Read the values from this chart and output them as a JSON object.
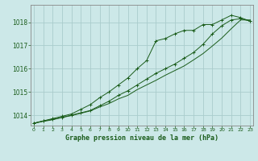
{
  "xlabel": "Graphe pression niveau de la mer (hPa)",
  "background_color": "#cce8e8",
  "grid_color": "#aacccc",
  "line_color": "#1a5c1a",
  "x_ticks": [
    0,
    1,
    2,
    3,
    4,
    5,
    6,
    7,
    8,
    9,
    10,
    11,
    12,
    13,
    14,
    15,
    16,
    17,
    18,
    19,
    20,
    21,
    22,
    23
  ],
  "y_ticks": [
    1014,
    1015,
    1016,
    1017,
    1018
  ],
  "ylim": [
    1013.55,
    1018.75
  ],
  "xlim": [
    -0.3,
    23.3
  ],
  "s1": [
    1013.65,
    1013.75,
    1013.85,
    1013.95,
    1014.05,
    1014.25,
    1014.45,
    1014.75,
    1015.0,
    1015.3,
    1015.6,
    1016.0,
    1016.35,
    1017.2,
    1017.3,
    1017.5,
    1017.65,
    1017.65,
    1017.9,
    1017.9,
    1018.1,
    1018.3,
    1018.2,
    1018.05
  ],
  "s2": [
    1013.65,
    1013.75,
    1013.82,
    1013.9,
    1014.0,
    1014.1,
    1014.2,
    1014.4,
    1014.6,
    1014.85,
    1015.05,
    1015.3,
    1015.55,
    1015.8,
    1016.0,
    1016.2,
    1016.45,
    1016.7,
    1017.05,
    1017.5,
    1017.85,
    1018.1,
    1018.15,
    1018.05
  ],
  "s3": [
    1013.65,
    1013.73,
    1013.8,
    1013.9,
    1013.98,
    1014.08,
    1014.18,
    1014.35,
    1014.5,
    1014.7,
    1014.85,
    1015.1,
    1015.3,
    1015.5,
    1015.72,
    1015.92,
    1016.12,
    1016.38,
    1016.65,
    1016.98,
    1017.32,
    1017.72,
    1018.1,
    1018.1
  ]
}
